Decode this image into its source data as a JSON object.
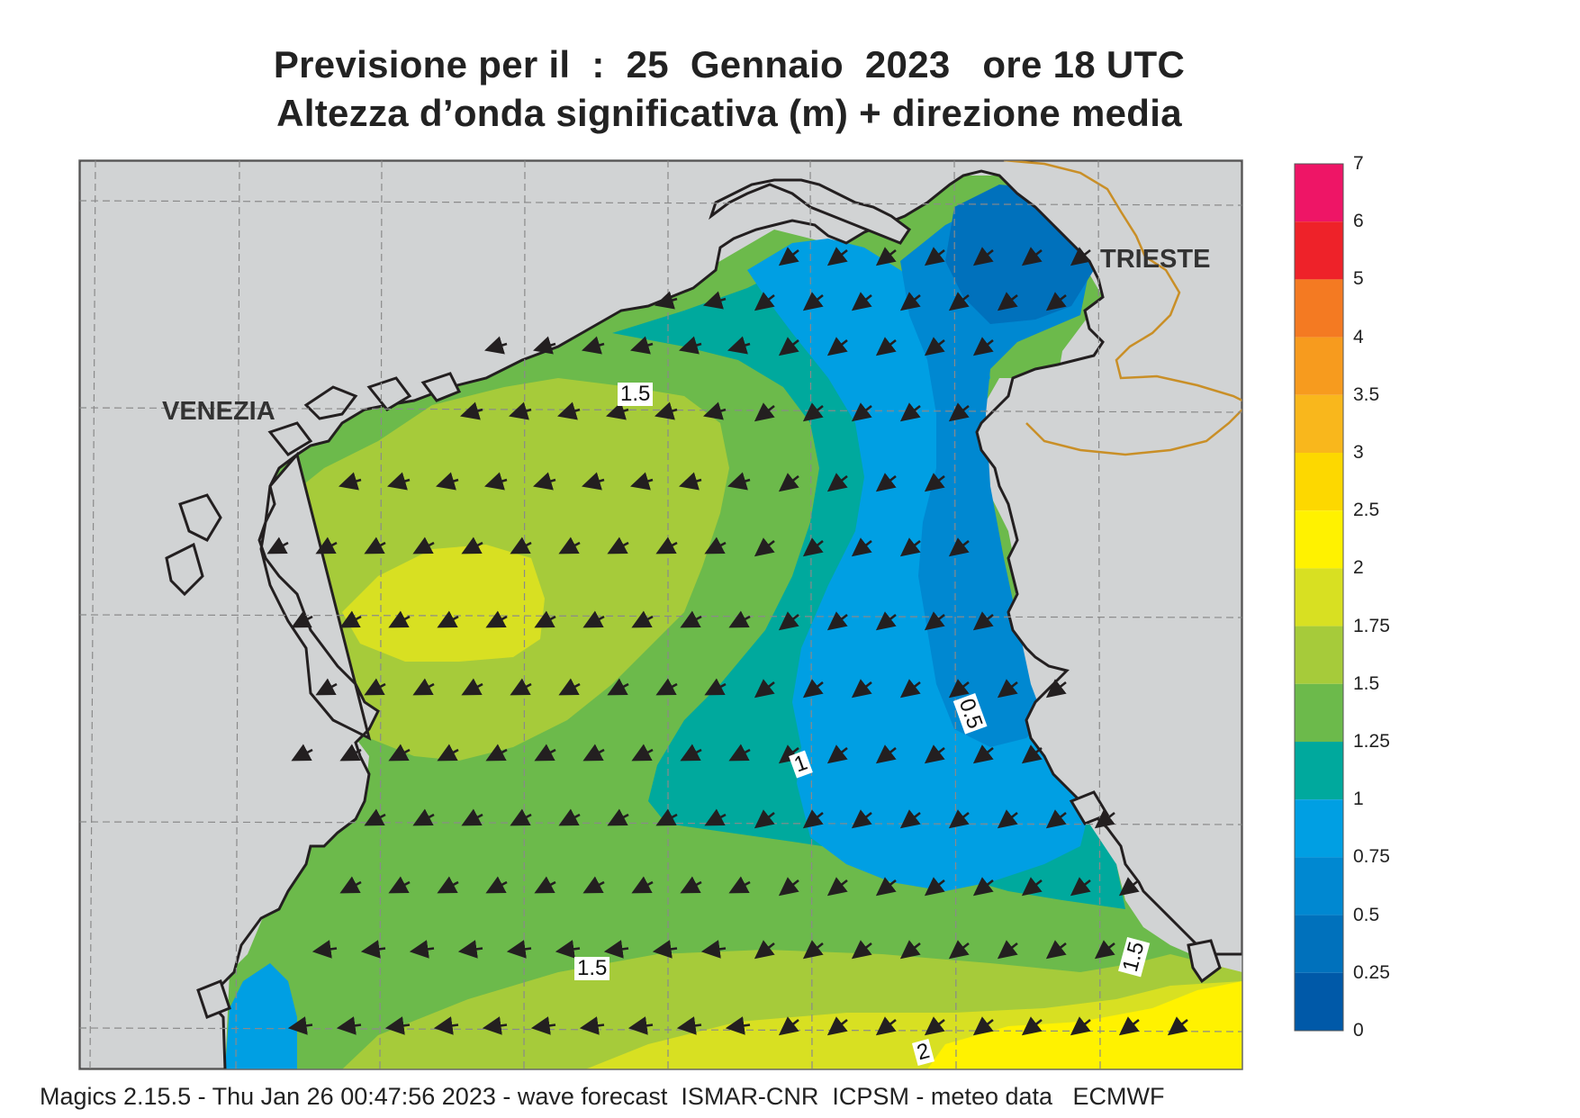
{
  "title": {
    "line1": "Previsione per il  :  25  Gennaio  2023   ore 18 UTC",
    "line2": "Altezza d’onda significativa (m) + direzione media"
  },
  "cities": {
    "venezia": "VENEZIA",
    "trieste": "TRIESTE"
  },
  "legend": {
    "labels": [
      "7",
      "6",
      "5",
      "4",
      "3.5",
      "3",
      "2.5",
      "2",
      "1.75",
      "1.5",
      "1.25",
      "1",
      "0.75",
      "0.5",
      "0.25",
      "0"
    ],
    "colors": [
      "#ee1566",
      "#ee2229",
      "#f47a22",
      "#f79b1e",
      "#f9b71c",
      "#fdd800",
      "#fff200",
      "#d8e022",
      "#a6cb3a",
      "#6cba4b",
      "#00a99d",
      "#009fe3",
      "#0088d1",
      "#0071bc",
      "#0059a8"
    ]
  },
  "contour_labels": [
    "1.5",
    "0.5",
    "1",
    "1.5",
    "1.5",
    "2"
  ],
  "colors": {
    "land": "#d1d3d4",
    "border": "#c98f27",
    "coast": "#231f20",
    "grid": "#8a8a8a"
  },
  "footer": "Magics 2.15.5 - Thu Jan 26 00:47:56 2023 - wave forecast  ISMAR-CNR  ICPSM - meteo data   ECMWF"
}
